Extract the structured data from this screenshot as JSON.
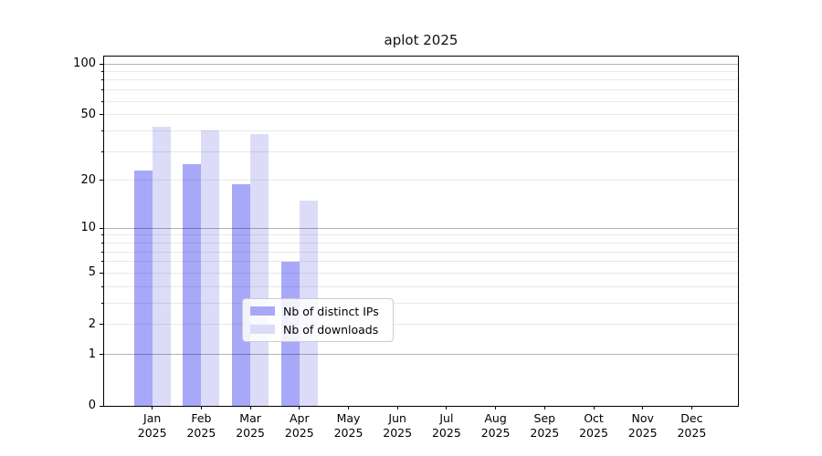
{
  "chart_data": {
    "type": "bar",
    "title": "aplot 2025",
    "categories": [
      "Jan",
      "Feb",
      "Mar",
      "Apr",
      "May",
      "Jun",
      "Jul",
      "Aug",
      "Sep",
      "Oct",
      "Nov",
      "Dec"
    ],
    "x_year": "2025",
    "series": [
      {
        "name": "Nb of distinct IPs",
        "color": "#a8a8f8",
        "values": [
          23,
          25,
          19,
          6,
          null,
          null,
          null,
          null,
          null,
          null,
          null,
          null
        ]
      },
      {
        "name": "Nb of downloads",
        "color": "#dcdcf9",
        "values": [
          42,
          40,
          38,
          15,
          null,
          null,
          null,
          null,
          null,
          null,
          null,
          null
        ]
      }
    ],
    "y_scale": "log1p",
    "y_ticks": [
      0,
      1,
      2,
      5,
      10,
      20,
      50,
      100
    ],
    "y_major_gridlines": [
      1,
      10,
      100
    ],
    "y_minor_gridlines": [
      2,
      3,
      4,
      5,
      6,
      7,
      8,
      9,
      20,
      30,
      40,
      50,
      60,
      70,
      80,
      90
    ],
    "ylim": [
      0,
      112
    ],
    "grid": "horizontal",
    "legend_position": "lower-center",
    "colors": {
      "major_grid": "rgba(0,0,0,0.30)",
      "minor_grid": "rgba(0,0,0,0.085)",
      "spine": "#000000",
      "text": "#000000",
      "legend_border": "#cccccc"
    }
  }
}
